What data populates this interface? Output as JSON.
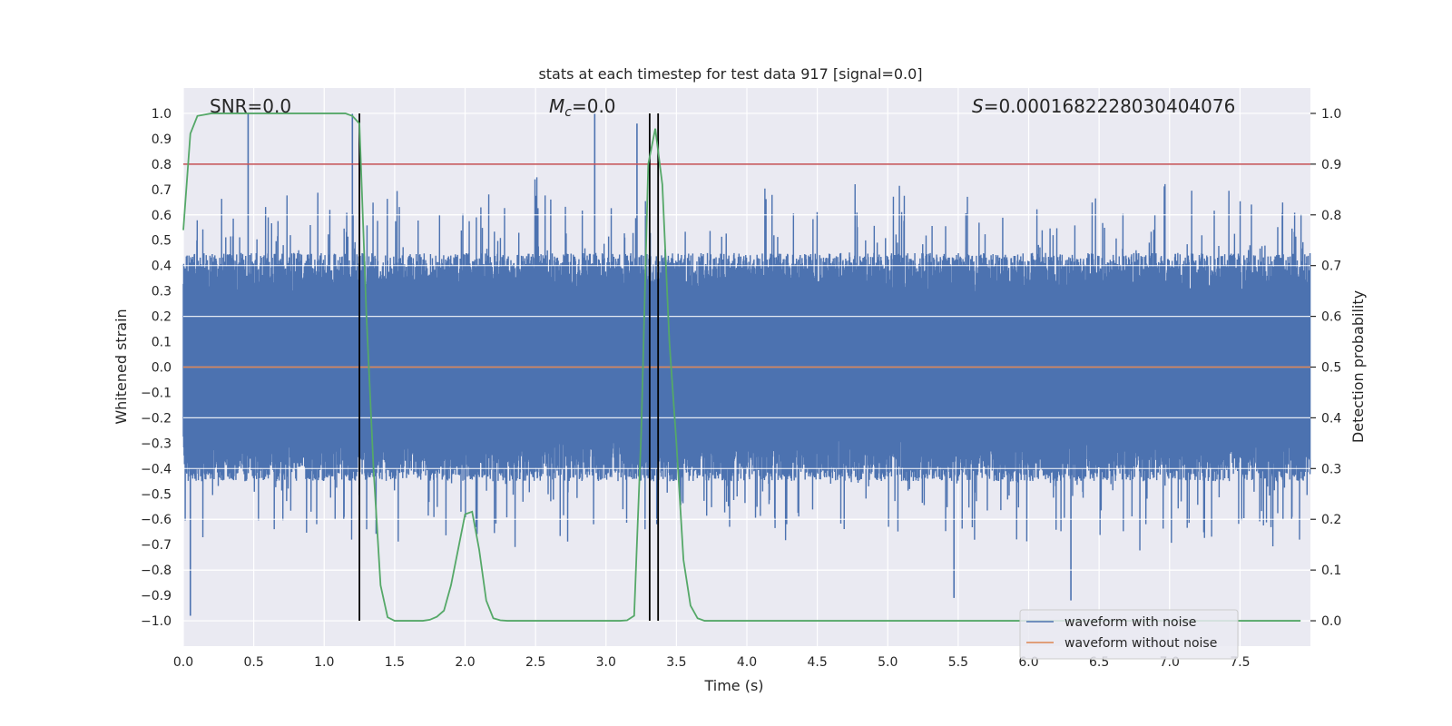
{
  "chart_data": {
    "type": "line",
    "title": "stats at each timestep for test data 917 [signal=0.0]",
    "xlabel": "Time (s)",
    "ylabel": "Whitened strain",
    "y2label": "Detection probability",
    "xlim": [
      0.0,
      8.0
    ],
    "ylim": [
      -1.1,
      1.1
    ],
    "y2lim": [
      -0.05,
      1.05
    ],
    "x_ticks": [
      0.0,
      0.5,
      1.0,
      1.5,
      2.0,
      2.5,
      3.0,
      3.5,
      4.0,
      4.5,
      5.0,
      5.5,
      6.0,
      6.5,
      7.0,
      7.5
    ],
    "x_tick_labels": [
      "0.0",
      "0.5",
      "1.0",
      "1.5",
      "2.0",
      "2.5",
      "3.0",
      "3.5",
      "4.0",
      "4.5",
      "5.0",
      "5.5",
      "6.0",
      "6.5",
      "7.0",
      "7.5"
    ],
    "y_ticks": [
      1.0,
      0.9,
      0.8,
      0.7,
      0.6,
      0.5,
      0.4,
      0.3,
      0.2,
      0.1,
      0.0,
      -0.1,
      -0.2,
      -0.3,
      -0.4,
      -0.5,
      -0.6,
      -0.7,
      -0.8,
      -0.9,
      -1.0
    ],
    "y_tick_labels": [
      "1.0",
      "0.9",
      "0.8",
      "0.7",
      "0.6",
      "0.5",
      "0.4",
      "0.3",
      "0.2",
      "0.1",
      "0.0",
      "−0.1",
      "−0.2",
      "−0.3",
      "−0.4",
      "−0.5",
      "−0.6",
      "−0.7",
      "−0.8",
      "−0.9",
      "−1.0"
    ],
    "y2_ticks": [
      1.0,
      0.9,
      0.8,
      0.7,
      0.6,
      0.5,
      0.4,
      0.3,
      0.2,
      0.1,
      0.0
    ],
    "y2_tick_labels": [
      "1.0",
      "0.9",
      "0.8",
      "0.7",
      "0.6",
      "0.5",
      "0.4",
      "0.3",
      "0.2",
      "0.1",
      "0.0"
    ],
    "annotations": {
      "snr": "SNR=0.0",
      "mc_symbol": "M",
      "mc_subscript": "c",
      "mc_value": "=0.0",
      "s_symbol": "S",
      "s_value": "=0.0001682228030404076"
    },
    "threshold": 0.9,
    "vertical_lines_x": [
      1.25,
      3.31,
      3.37
    ],
    "noise_envelope": {
      "typical_max": 0.45,
      "typical_min": -0.45,
      "notable_peaks": [
        {
          "x": 0.05,
          "y": -0.98
        },
        {
          "x": 0.46,
          "y": 1.0
        },
        {
          "x": 1.2,
          "y": 1.0
        },
        {
          "x": 2.92,
          "y": 1.0
        },
        {
          "x": 3.22,
          "y": 0.96
        },
        {
          "x": 5.47,
          "y": -0.91
        },
        {
          "x": 6.3,
          "y": -0.92
        }
      ]
    },
    "detection_probability": {
      "x": [
        0.0,
        0.05,
        0.1,
        0.2,
        0.4,
        0.8,
        1.0,
        1.15,
        1.2,
        1.25,
        1.3,
        1.35,
        1.4,
        1.45,
        1.5,
        1.6,
        1.7,
        1.75,
        1.8,
        1.85,
        1.9,
        1.95,
        2.0,
        2.05,
        2.1,
        2.15,
        2.2,
        2.25,
        2.3,
        2.5,
        2.8,
        3.0,
        3.1,
        3.15,
        3.2,
        3.25,
        3.3,
        3.35,
        3.4,
        3.45,
        3.5,
        3.55,
        3.6,
        3.65,
        3.7,
        4.0,
        8.0
      ],
      "y": [
        0.77,
        0.96,
        0.995,
        1.0,
        1.0,
        1.0,
        1.0,
        1.0,
        0.995,
        0.98,
        0.6,
        0.3,
        0.07,
        0.007,
        0.0,
        0.0,
        0.0,
        0.002,
        0.008,
        0.02,
        0.07,
        0.14,
        0.21,
        0.215,
        0.14,
        0.04,
        0.005,
        0.001,
        0.0,
        0.0,
        0.0,
        0.0,
        0.0,
        0.001,
        0.01,
        0.37,
        0.9,
        0.97,
        0.86,
        0.55,
        0.35,
        0.12,
        0.03,
        0.005,
        0.0,
        0.0,
        0.0
      ]
    },
    "legend": {
      "position": "lower-right",
      "entries": [
        {
          "label": "waveform with noise",
          "color": "#4c72b0"
        },
        {
          "label": "waveform without noise",
          "color": "#dd8452"
        }
      ]
    },
    "colors": {
      "noise": "#4c72b0",
      "clean": "#dd8452",
      "probability": "#55a868",
      "threshold": "#c44e52",
      "vlines": "#000000",
      "axes_bg": "#eaeaf2",
      "grid": "#ffffff"
    }
  }
}
